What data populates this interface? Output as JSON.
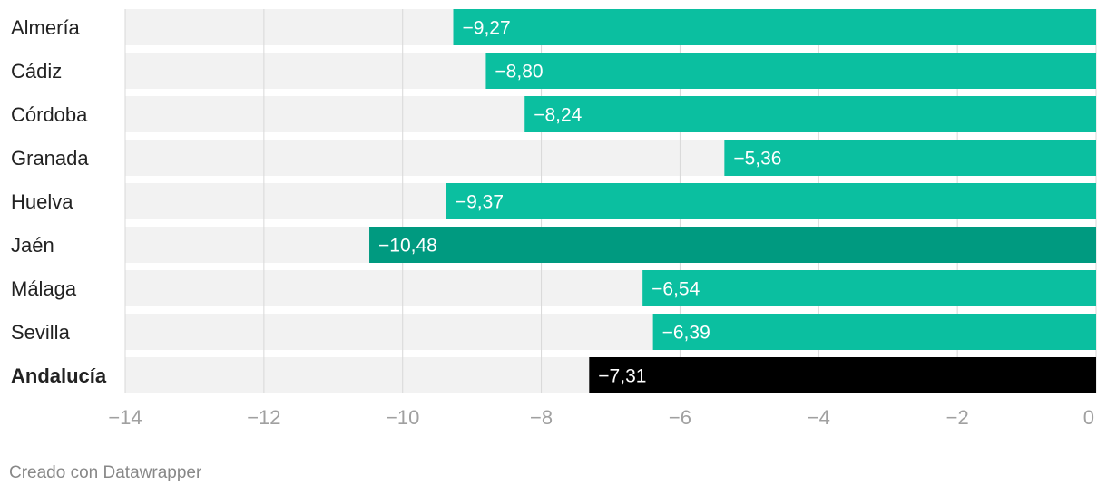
{
  "chart_data": {
    "type": "bar",
    "orientation": "horizontal",
    "categories": [
      "Almería",
      "Cádiz",
      "Córdoba",
      "Granada",
      "Huelva",
      "Jaén",
      "Málaga",
      "Sevilla",
      "Andalucía"
    ],
    "values": [
      -9.27,
      -8.8,
      -8.24,
      -5.36,
      -9.37,
      -10.48,
      -6.54,
      -6.39,
      -7.31
    ],
    "value_labels": [
      "−9,27",
      "−8,80",
      "−8,24",
      "−5,36",
      "−9,37",
      "−10,48",
      "−6,54",
      "−6,39",
      "−7,31"
    ],
    "bold_categories": [
      "Andalucía"
    ],
    "xlim": [
      -14,
      0
    ],
    "x_ticks": [
      -14,
      -12,
      -10,
      -8,
      -6,
      -4,
      -2,
      0
    ],
    "x_tick_labels": [
      "−14",
      "−12",
      "−10",
      "−8",
      "−6",
      "−4",
      "−2",
      "0"
    ],
    "grid": true,
    "title": "",
    "xlabel": "",
    "ylabel": "",
    "colors": {
      "default": "#0bbfa0",
      "highlight_min": "#009a80",
      "total": "#000000",
      "track": "#f2f2f2",
      "gridline": "#d8d8d8",
      "label_text": "#ffffff",
      "tick_text": "#a0a0a0"
    }
  },
  "footer": {
    "credit": "Creado con Datawrapper"
  }
}
